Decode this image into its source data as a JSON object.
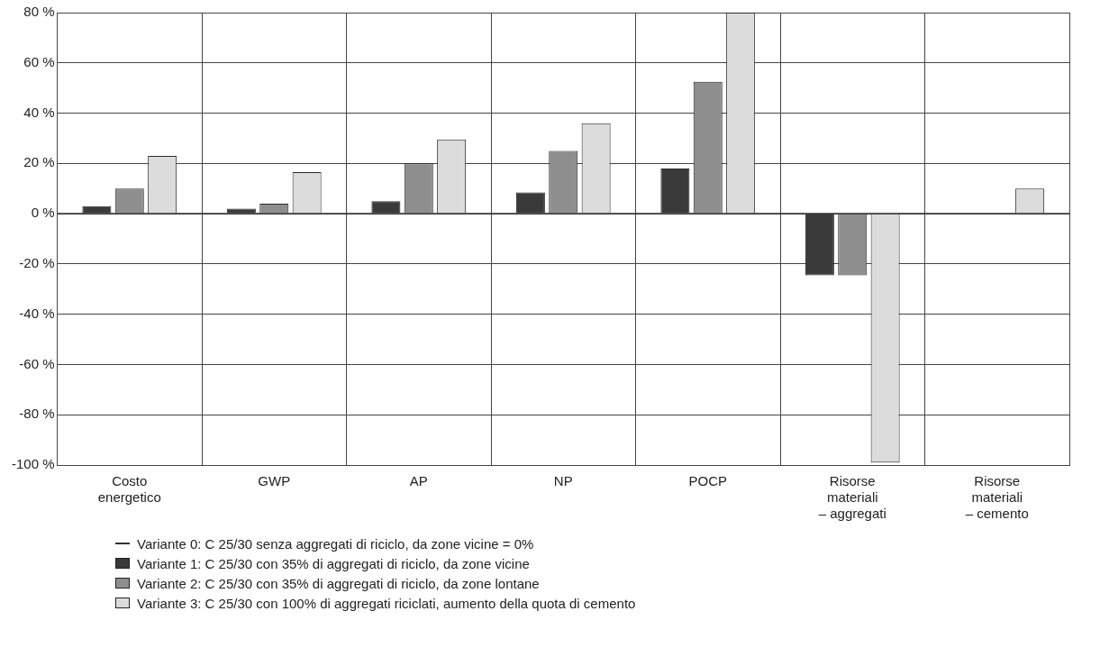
{
  "chart_data": {
    "type": "bar",
    "categories": [
      "Costo\nenergetico",
      "GWP",
      "AP",
      "NP",
      "POCP",
      "Risorse\nmateriali\n– aggregati",
      "Risorse\nmateriali\n– cemento"
    ],
    "series": [
      {
        "name": "Variante 1: C 25/30 con 35% di aggregati di riciclo, da zone vicine",
        "color": "#3a3a3a",
        "values": [
          3,
          2,
          5,
          8.5,
          18,
          -24.5,
          0
        ]
      },
      {
        "name": "Variante 2: C 25/30 con 35% di aggregati di riciclo, da zone lontane",
        "color": "#8e8e8e",
        "values": [
          10,
          4,
          20,
          25,
          52.5,
          -24.5,
          0
        ]
      },
      {
        "name": "Variante 3: C 25/30 con 100% di aggregati riciclati, aumento della quota di cemento",
        "color": "#dcdcdc",
        "values": [
          23,
          16.5,
          29.5,
          36,
          80,
          -99,
          10
        ]
      }
    ],
    "ref_lines": [
      {
        "axis": "y",
        "value": 0,
        "label": "Variante 0: C 25/30 senza aggregati di riciclo, da zone vicine = 0%",
        "color": "#333333"
      }
    ],
    "ylim": [
      -100,
      80
    ],
    "yticks": [
      {
        "value": -100,
        "label": "-100 %"
      },
      {
        "value": -80,
        "label": "-80 %"
      },
      {
        "value": -60,
        "label": "-60 %"
      },
      {
        "value": -40,
        "label": "-40 %"
      },
      {
        "value": -20,
        "label": "-20 %"
      },
      {
        "value": 0,
        "label": "0 %"
      },
      {
        "value": 20,
        "label": "20 %"
      },
      {
        "value": 40,
        "label": "40 %"
      },
      {
        "value": 60,
        "label": "60 %"
      },
      {
        "value": 80,
        "label": "80 %"
      }
    ],
    "grid": true,
    "legend": "bottom"
  }
}
